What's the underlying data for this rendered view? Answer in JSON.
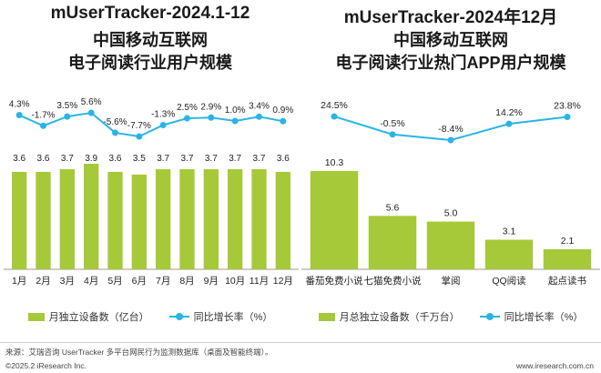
{
  "colors": {
    "bar": "#a6c93a",
    "line": "#2ab4e6",
    "text": "#222222"
  },
  "chart_data": [
    {
      "type": "bar",
      "title_lines": [
        "mUserTracker-2024.1-12",
        "中国移动互联网",
        "电子阅读行业用户规模"
      ],
      "categories": [
        "1月",
        "2月",
        "3月",
        "4月",
        "5月",
        "6月",
        "7月",
        "8月",
        "9月",
        "10月",
        "11月",
        "12月"
      ],
      "series": [
        {
          "name": "月独立设备数（亿台）",
          "type": "bar",
          "values": [
            3.6,
            3.6,
            3.7,
            3.9,
            3.6,
            3.5,
            3.7,
            3.7,
            3.7,
            3.7,
            3.7,
            3.6
          ],
          "labels": [
            "3.6",
            "3.6",
            "3.7",
            "3.9",
            "3.6",
            "3.5",
            "3.7",
            "3.7",
            "3.7",
            "3.7",
            "3.7",
            "3.6"
          ]
        },
        {
          "name": "同比增长率（%）",
          "type": "line",
          "values": [
            4.3,
            -1.7,
            3.5,
            5.6,
            -5.6,
            -7.7,
            -1.3,
            2.5,
            2.9,
            1.0,
            3.4,
            0.9
          ],
          "labels": [
            "4.3%",
            "-1.7%",
            "3.5%",
            "5.6%",
            "-5.6%",
            "-7.7%",
            "-1.3%",
            "2.5%",
            "2.9%",
            "1.0%",
            "3.4%",
            "0.9%"
          ]
        }
      ]
    },
    {
      "type": "bar",
      "title_lines": [
        "mUserTracker-2024年12月",
        "中国移动互联网",
        "电子阅读行业热门APP用户规模"
      ],
      "categories": [
        "番茄免费小说",
        "七猫免费小说",
        "掌阅",
        "QQ阅读",
        "起点读书"
      ],
      "series": [
        {
          "name": "月总独立设备数（千万台）",
          "type": "bar",
          "values": [
            10.3,
            5.6,
            5.0,
            3.1,
            2.1
          ],
          "labels": [
            "10.3",
            "5.6",
            "5.0",
            "3.1",
            "2.1"
          ]
        },
        {
          "name": "同比增长率（%）",
          "type": "line",
          "values": [
            24.5,
            -0.5,
            -8.4,
            14.2,
            23.8
          ],
          "labels": [
            "24.5%",
            "-0.5%",
            "-8.4%",
            "14.2%",
            "23.8%"
          ]
        }
      ]
    }
  ],
  "footer": {
    "source": "来源：艾瑞咨询 UserTracker 多平台网民行为监测数据库（桌面及智能终端）。",
    "copyright": "©2025.2 iResearch Inc.",
    "website": "www.iresearch.com.cn"
  }
}
